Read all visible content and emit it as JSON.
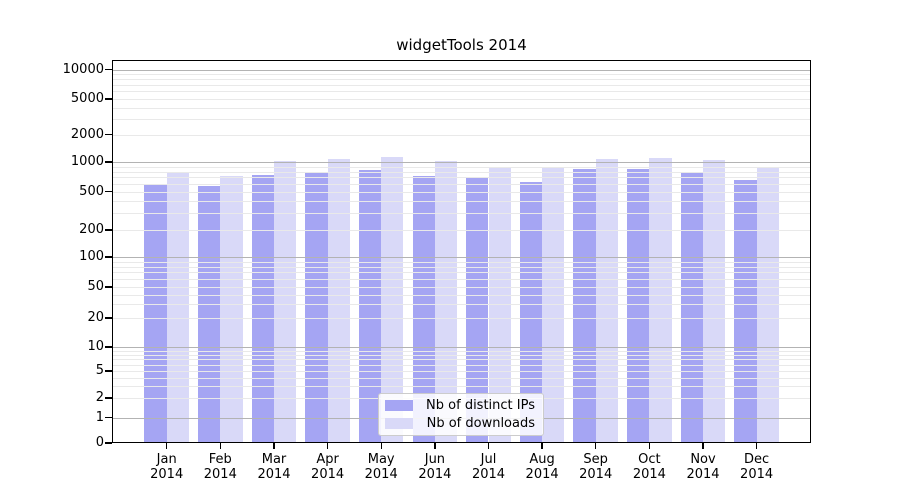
{
  "title": "widgetTools 2014",
  "legend": {
    "items": [
      {
        "label": "Nb of distinct IPs"
      },
      {
        "label": "Nb of downloads"
      }
    ]
  },
  "chart_data": {
    "type": "bar",
    "title": "widgetTools 2014",
    "categories": [
      "Jan 2014",
      "Feb 2014",
      "Mar 2014",
      "Apr 2014",
      "May 2014",
      "Jun 2014",
      "Jul 2014",
      "Aug 2014",
      "Sep 2014",
      "Oct 2014",
      "Nov 2014",
      "Dec 2014"
    ],
    "series": [
      {
        "name": "Nb of distinct IPs",
        "color": "#a5a5f3",
        "values": [
          600,
          565,
          730,
          780,
          820,
          720,
          690,
          620,
          840,
          855,
          770,
          650
        ]
      },
      {
        "name": "Nb of downloads",
        "color": "#d9d9f8",
        "values": [
          790,
          715,
          1030,
          1090,
          1130,
          1030,
          890,
          880,
          1075,
          1120,
          1060,
          880
        ]
      }
    ],
    "xlabel": "",
    "ylabel": "",
    "y_axis": {
      "scale": "log-like-with-zero",
      "ticks": [
        10000,
        5000,
        2000,
        1000,
        500,
        200,
        100,
        50,
        20,
        10,
        5,
        2,
        1,
        0
      ],
      "ylim": [
        0,
        10000
      ]
    },
    "grid": true,
    "legend_position": "bottom-center-inside"
  }
}
